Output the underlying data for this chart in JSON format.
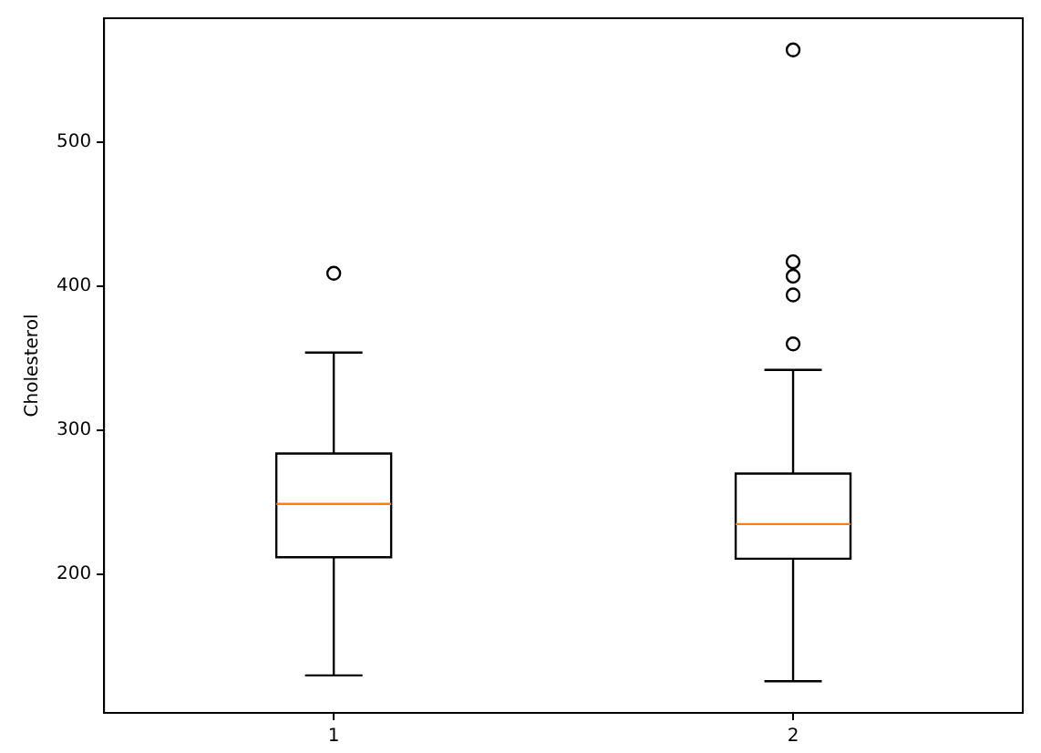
{
  "chart_data": {
    "type": "box",
    "ylabel": "Cholesterol",
    "categories": [
      "1",
      "2"
    ],
    "boxes": [
      {
        "low": 130,
        "q1": 212,
        "median": 249,
        "q3": 284,
        "high": 354,
        "outliers": [
          409
        ]
      },
      {
        "low": 126,
        "q1": 211,
        "median": 235,
        "q3": 270,
        "high": 342,
        "outliers": [
          360,
          394,
          407,
          417,
          564
        ]
      }
    ],
    "ylim": [
      104,
      586
    ],
    "yticks": [
      200,
      300,
      400,
      500
    ],
    "grid": false,
    "legend": false
  }
}
